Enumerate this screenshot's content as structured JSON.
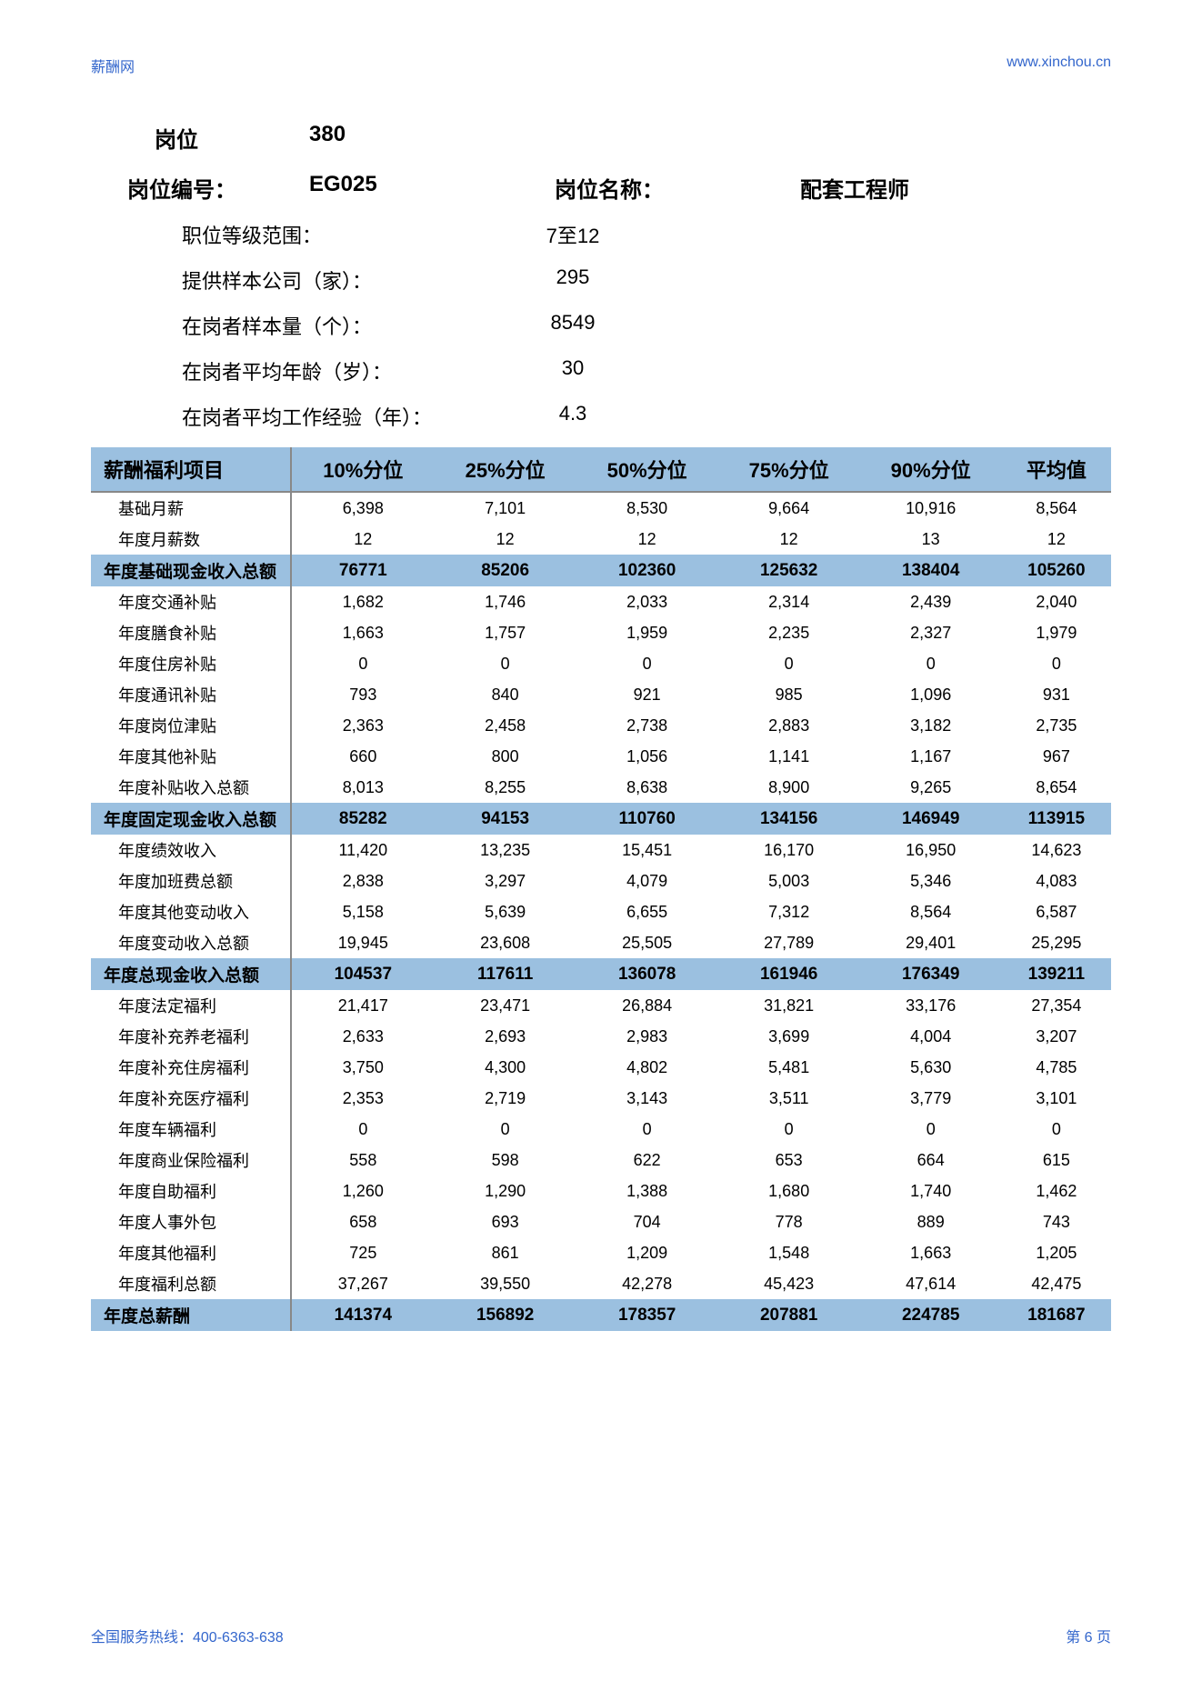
{
  "header": {
    "left": "薪酬网",
    "right": "www.xinchou.cn"
  },
  "top": {
    "gangwei_label": "岗位",
    "gangwei_value": "380",
    "code_label": "岗位编号：",
    "code_value": "EG025",
    "name_label": "岗位名称：",
    "name_value": "配套工程师",
    "rows": [
      {
        "label": "职位等级范围：",
        "value": "7至12"
      },
      {
        "label": "提供样本公司（家）：",
        "value": "295"
      },
      {
        "label": "在岗者样本量（个）：",
        "value": "8549"
      },
      {
        "label": "在岗者平均年龄（岁）：",
        "value": "30"
      },
      {
        "label": "在岗者平均工作经验（年）：",
        "value": "4.3"
      }
    ]
  },
  "table": {
    "columns": [
      "薪酬福利项目",
      "10%分位",
      "25%分位",
      "50%分位",
      "75%分位",
      "90%分位",
      "平均值"
    ],
    "rows": [
      {
        "type": "data",
        "cells": [
          "基础月薪",
          "6,398",
          "7,101",
          "8,530",
          "9,664",
          "10,916",
          "8,564"
        ]
      },
      {
        "type": "data",
        "cells": [
          "年度月薪数",
          "12",
          "12",
          "12",
          "12",
          "13",
          "12"
        ]
      },
      {
        "type": "section",
        "cells": [
          "年度基础现金收入总额",
          "76771",
          "85206",
          "102360",
          "125632",
          "138404",
          "105260"
        ]
      },
      {
        "type": "data",
        "cells": [
          "年度交通补贴",
          "1,682",
          "1,746",
          "2,033",
          "2,314",
          "2,439",
          "2,040"
        ]
      },
      {
        "type": "data",
        "cells": [
          "年度膳食补贴",
          "1,663",
          "1,757",
          "1,959",
          "2,235",
          "2,327",
          "1,979"
        ]
      },
      {
        "type": "data",
        "cells": [
          "年度住房补贴",
          "0",
          "0",
          "0",
          "0",
          "0",
          "0"
        ]
      },
      {
        "type": "data",
        "cells": [
          "年度通讯补贴",
          "793",
          "840",
          "921",
          "985",
          "1,096",
          "931"
        ]
      },
      {
        "type": "data",
        "cells": [
          "年度岗位津贴",
          "2,363",
          "2,458",
          "2,738",
          "2,883",
          "3,182",
          "2,735"
        ]
      },
      {
        "type": "data",
        "cells": [
          "年度其他补贴",
          "660",
          "800",
          "1,056",
          "1,141",
          "1,167",
          "967"
        ]
      },
      {
        "type": "data",
        "cells": [
          "年度补贴收入总额",
          "8,013",
          "8,255",
          "8,638",
          "8,900",
          "9,265",
          "8,654"
        ]
      },
      {
        "type": "section",
        "cells": [
          "年度固定现金收入总额",
          "85282",
          "94153",
          "110760",
          "134156",
          "146949",
          "113915"
        ]
      },
      {
        "type": "data",
        "cells": [
          "年度绩效收入",
          "11,420",
          "13,235",
          "15,451",
          "16,170",
          "16,950",
          "14,623"
        ]
      },
      {
        "type": "data",
        "cells": [
          "年度加班费总额",
          "2,838",
          "3,297",
          "4,079",
          "5,003",
          "5,346",
          "4,083"
        ]
      },
      {
        "type": "data",
        "cells": [
          "年度其他变动收入",
          "5,158",
          "5,639",
          "6,655",
          "7,312",
          "8,564",
          "6,587"
        ]
      },
      {
        "type": "data",
        "cells": [
          "年度变动收入总额",
          "19,945",
          "23,608",
          "25,505",
          "27,789",
          "29,401",
          "25,295"
        ]
      },
      {
        "type": "section",
        "cells": [
          "年度总现金收入总额",
          "104537",
          "117611",
          "136078",
          "161946",
          "176349",
          "139211"
        ]
      },
      {
        "type": "data",
        "cells": [
          "年度法定福利",
          "21,417",
          "23,471",
          "26,884",
          "31,821",
          "33,176",
          "27,354"
        ]
      },
      {
        "type": "data",
        "cells": [
          "年度补充养老福利",
          "2,633",
          "2,693",
          "2,983",
          "3,699",
          "4,004",
          "3,207"
        ]
      },
      {
        "type": "data",
        "cells": [
          "年度补充住房福利",
          "3,750",
          "4,300",
          "4,802",
          "5,481",
          "5,630",
          "4,785"
        ]
      },
      {
        "type": "data",
        "cells": [
          "年度补充医疗福利",
          "2,353",
          "2,719",
          "3,143",
          "3,511",
          "3,779",
          "3,101"
        ]
      },
      {
        "type": "data",
        "cells": [
          "年度车辆福利",
          "0",
          "0",
          "0",
          "0",
          "0",
          "0"
        ]
      },
      {
        "type": "data",
        "cells": [
          "年度商业保险福利",
          "558",
          "598",
          "622",
          "653",
          "664",
          "615"
        ]
      },
      {
        "type": "data",
        "cells": [
          "年度自助福利",
          "1,260",
          "1,290",
          "1,388",
          "1,680",
          "1,740",
          "1,462"
        ]
      },
      {
        "type": "data",
        "cells": [
          "年度人事外包",
          "658",
          "693",
          "704",
          "778",
          "889",
          "743"
        ]
      },
      {
        "type": "data",
        "cells": [
          "年度其他福利",
          "725",
          "861",
          "1,209",
          "1,548",
          "1,663",
          "1,205"
        ]
      },
      {
        "type": "data",
        "cells": [
          "年度福利总额",
          "37,267",
          "39,550",
          "42,278",
          "45,423",
          "47,614",
          "42,475"
        ]
      },
      {
        "type": "section",
        "cells": [
          "年度总薪酬",
          "141374",
          "156892",
          "178357",
          "207881",
          "224785",
          "181687"
        ]
      }
    ]
  },
  "footer": {
    "left": "全国服务热线：400-6363-638",
    "right": "第 6 页"
  },
  "colors": {
    "header_bg": "#9bc0e0",
    "link_color": "#3366cc",
    "text_color": "#000000",
    "background": "#ffffff"
  }
}
